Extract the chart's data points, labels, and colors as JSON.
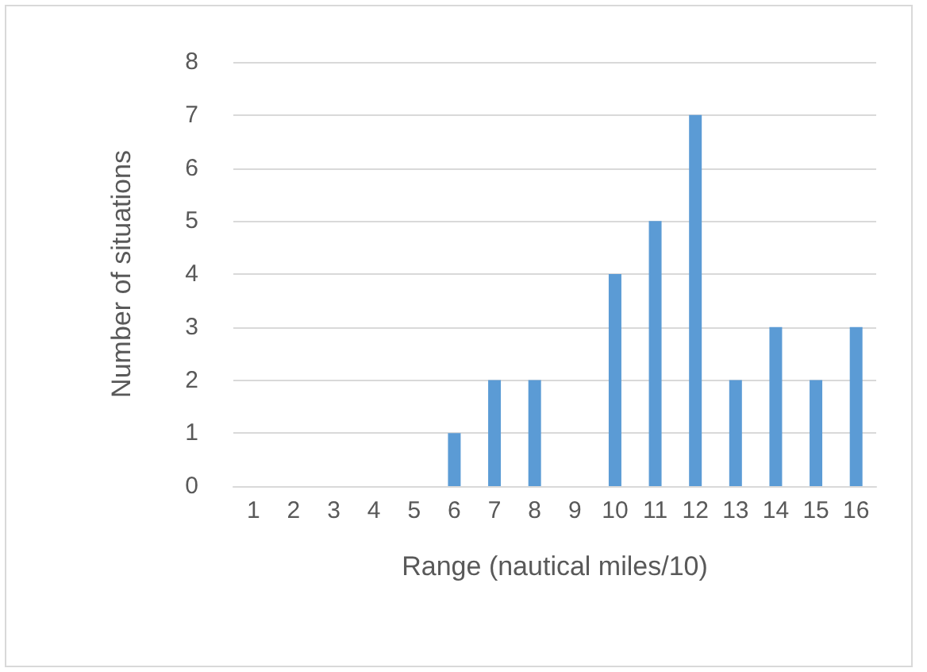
{
  "chart_data": {
    "type": "bar",
    "xlabel": "Range (nautical miles/10)",
    "ylabel": "Number of situations",
    "categories": [
      "1",
      "2",
      "3",
      "4",
      "5",
      "6",
      "7",
      "8",
      "9",
      "10",
      "11",
      "12",
      "13",
      "14",
      "15",
      "16"
    ],
    "values": [
      0,
      0,
      0,
      0,
      0,
      1,
      2,
      2,
      0,
      4,
      5,
      7,
      2,
      3,
      2,
      3
    ],
    "color": "#5b9bd5",
    "ylim": [
      0,
      8
    ],
    "yticks": [
      0,
      1,
      2,
      3,
      4,
      5,
      6,
      7,
      8
    ],
    "grid": "y"
  }
}
